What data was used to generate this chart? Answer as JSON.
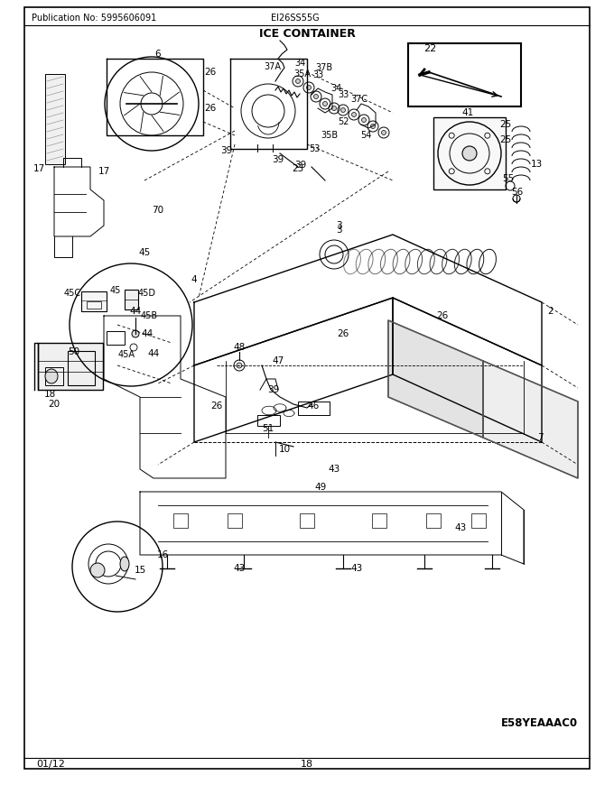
{
  "pub_no": "Publication No: 5995606091",
  "model": "EI26SS55G",
  "title": "ICE CONTAINER",
  "date": "01/12",
  "page": "18",
  "diagram_code": "E58YEAAAC0",
  "bg_color": "#ffffff",
  "text_color": "#000000"
}
